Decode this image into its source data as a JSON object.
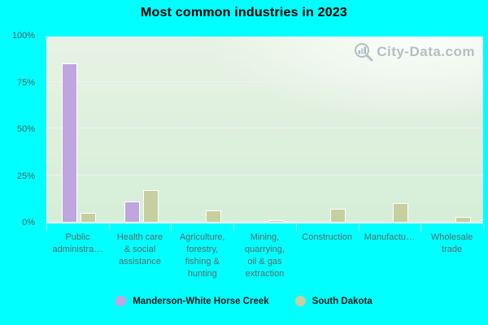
{
  "watermark": {
    "text": "City-Data.com"
  },
  "chart_data": {
    "type": "bar",
    "title": "Most common industries in 2023",
    "categories": [
      "Public administration",
      "Health care & social assistance",
      "Agriculture, forestry, fishing & hunting",
      "Mining, quarrying, oil & gas extraction",
      "Construction",
      "Manufacturing",
      "Wholesale trade"
    ],
    "category_display_labels": [
      "Public\nadministra…",
      "Health care\n& social\nassistance",
      "Agriculture,\nforestry,\nfishing &\nhunting",
      "Mining,\nquarrying,\noil & gas\nextraction",
      "Construction",
      "Manufactu…",
      "Wholesale\ntrade"
    ],
    "series": [
      {
        "name": "Manderson-White Horse Creek",
        "color": "#bfa6de",
        "values": [
          85,
          11,
          0,
          0,
          0,
          0,
          0
        ]
      },
      {
        "name": "South Dakota",
        "color": "#c6cf9e",
        "values": [
          5,
          17,
          6,
          1,
          7,
          10,
          2.5
        ]
      }
    ],
    "ylabel": "",
    "xlabel": "",
    "ylim": [
      0,
      100
    ],
    "yticks": [
      {
        "value": 100,
        "label": "100%"
      },
      {
        "value": 75,
        "label": "75%"
      },
      {
        "value": 50,
        "label": "50%"
      },
      {
        "value": 25,
        "label": "25%"
      },
      {
        "value": 0,
        "label": "0%"
      }
    ],
    "grid": true,
    "legend_position": "bottom",
    "background_color": "#00ffff"
  }
}
